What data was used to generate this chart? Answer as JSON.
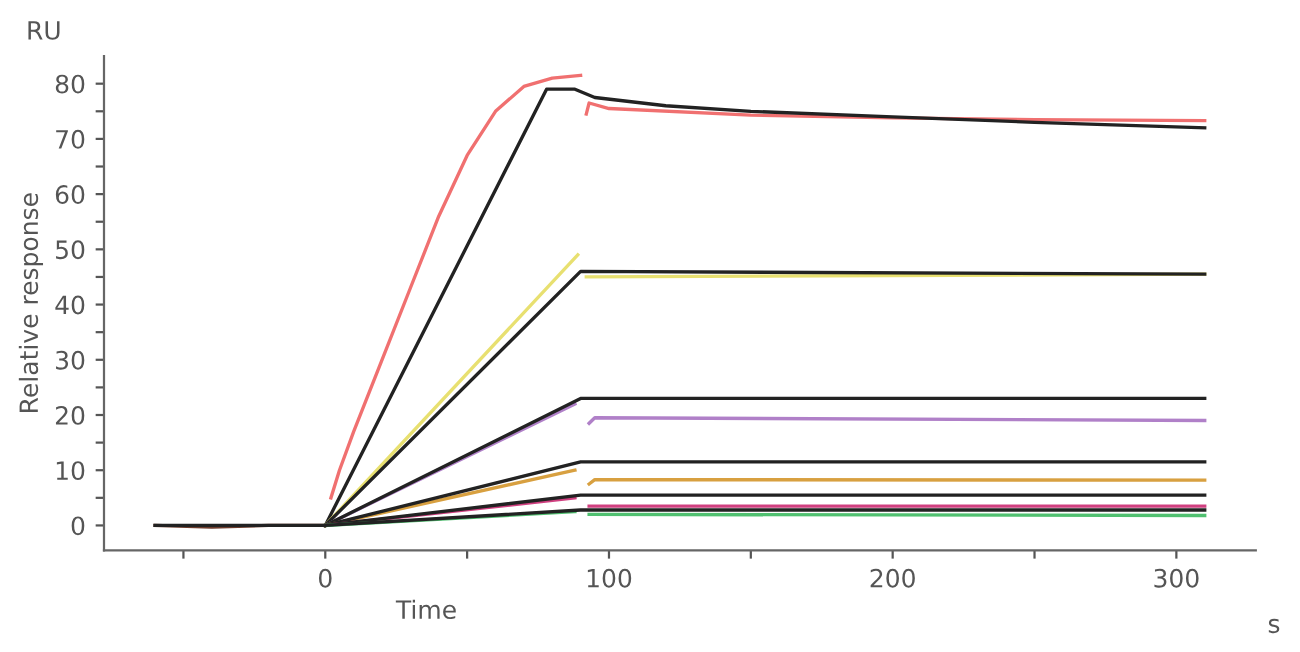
{
  "chart_data": {
    "type": "line",
    "xlabel": "Time",
    "ylabel": "Relative response",
    "annotations": [
      "RU",
      "s"
    ],
    "xlim": [
      -78,
      328
    ],
    "ylim": [
      -4.5,
      85
    ],
    "xticks": [
      {
        "value": -50,
        "label": null
      },
      0,
      {
        "value": 50,
        "label": null
      },
      100,
      {
        "value": 150,
        "label": null
      },
      200,
      {
        "value": 250,
        "label": null
      },
      300
    ],
    "yticks": [
      0,
      {
        "value": 5,
        "label": null
      },
      10,
      {
        "value": 15,
        "label": null
      },
      20,
      {
        "value": 25,
        "label": null
      },
      30,
      {
        "value": 35,
        "label": null
      },
      40,
      {
        "value": 45,
        "label": null
      },
      50,
      {
        "value": 55,
        "label": null
      },
      60,
      {
        "value": 65,
        "label": null
      },
      70,
      {
        "value": 75,
        "label": null
      },
      80
    ],
    "grid": false,
    "legend": false,
    "marker": "none",
    "line_style": "solid",
    "series": [
      {
        "color": "#6b3a2a",
        "x": [
          -60,
          -40,
          -20,
          0
        ],
        "values": [
          0,
          -0.3,
          0,
          0
        ]
      },
      {
        "color": "#f07070",
        "x": [
          2,
          5,
          10,
          20,
          30,
          40,
          50,
          60,
          70,
          80,
          90,
          91,
          92,
          93,
          100,
          150,
          200,
          250,
          310
        ],
        "values": [
          5,
          10,
          17,
          30,
          43,
          56,
          67,
          75,
          79.5,
          81,
          81.5,
          null,
          74.5,
          76.5,
          75.5,
          74.3,
          73.8,
          73.5,
          73.3
        ]
      },
      {
        "color": "#222222",
        "x": [
          0,
          78,
          88,
          95,
          120,
          150,
          200,
          250,
          310
        ],
        "values": [
          0,
          79,
          79,
          77.5,
          76,
          75,
          74,
          73,
          72
        ]
      },
      {
        "color": "#e8e070",
        "x": [
          0,
          89,
          90,
          92,
          310
        ],
        "values": [
          0,
          49,
          null,
          45,
          45.5
        ]
      },
      {
        "color": "#222222",
        "x": [
          0,
          90,
          310
        ],
        "values": [
          0,
          46,
          45.5
        ]
      },
      {
        "color": "#b080c8",
        "x": [
          0,
          88,
          90,
          93,
          95,
          310
        ],
        "values": [
          0,
          22,
          null,
          18.5,
          19.5,
          19
        ]
      },
      {
        "color": "#222222",
        "x": [
          0,
          90,
          310
        ],
        "values": [
          0,
          23,
          23
        ]
      },
      {
        "color": "#d8a040",
        "x": [
          0,
          88,
          90,
          93,
          95,
          310
        ],
        "values": [
          0,
          10,
          null,
          7.5,
          8.3,
          8.2
        ]
      },
      {
        "color": "#222222",
        "x": [
          0,
          90,
          310
        ],
        "values": [
          0,
          11.5,
          11.5
        ]
      },
      {
        "color": "#d04080",
        "x": [
          0,
          88,
          90,
          93,
          310
        ],
        "values": [
          0,
          5,
          null,
          3.5,
          3.5
        ]
      },
      {
        "color": "#222222",
        "x": [
          0,
          90,
          310
        ],
        "values": [
          0,
          5.5,
          5.5
        ]
      },
      {
        "color": "#50c070",
        "x": [
          0,
          88,
          90,
          93,
          310
        ],
        "values": [
          0,
          2.5,
          null,
          2,
          1.8
        ]
      },
      {
        "color": "#222222",
        "x": [
          -60,
          0,
          90,
          310
        ],
        "values": [
          0,
          0,
          2.8,
          2.8
        ]
      }
    ]
  }
}
